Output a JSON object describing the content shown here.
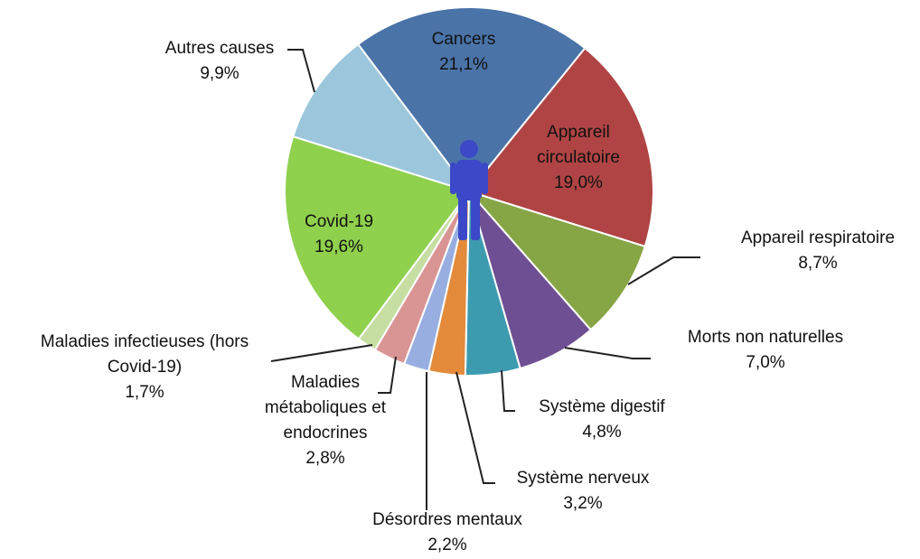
{
  "chart_data": {
    "type": "pie",
    "categories": [
      "Cancers",
      "Appareil circulatoire",
      "Appareil respiratoire",
      "Morts non naturelles",
      "Système digestif",
      "Système nerveux",
      "Désordres mentaux",
      "Maladies métaboliques et endocrines",
      "Maladies infectieuses (hors Covid-19)",
      "Covid-19",
      "Autres causes"
    ],
    "values": [
      21.1,
      19.0,
      8.7,
      7.0,
      4.8,
      3.2,
      2.2,
      2.8,
      1.7,
      19.6,
      9.9
    ],
    "value_labels": [
      "21,1%",
      "19,0%",
      "8,7%",
      "7,0%",
      "4,8%",
      "3,2%",
      "2,2%",
      "2,8%",
      "1,7%",
      "19,6%",
      "9,9%"
    ],
    "colors": [
      "#4a73a8",
      "#b04444",
      "#86a544",
      "#6e4f93",
      "#3d9bb0",
      "#e38b3a",
      "#98aee0",
      "#d99494",
      "#c6dea2",
      "#8fd04d",
      "#9bc6dc"
    ]
  }
}
